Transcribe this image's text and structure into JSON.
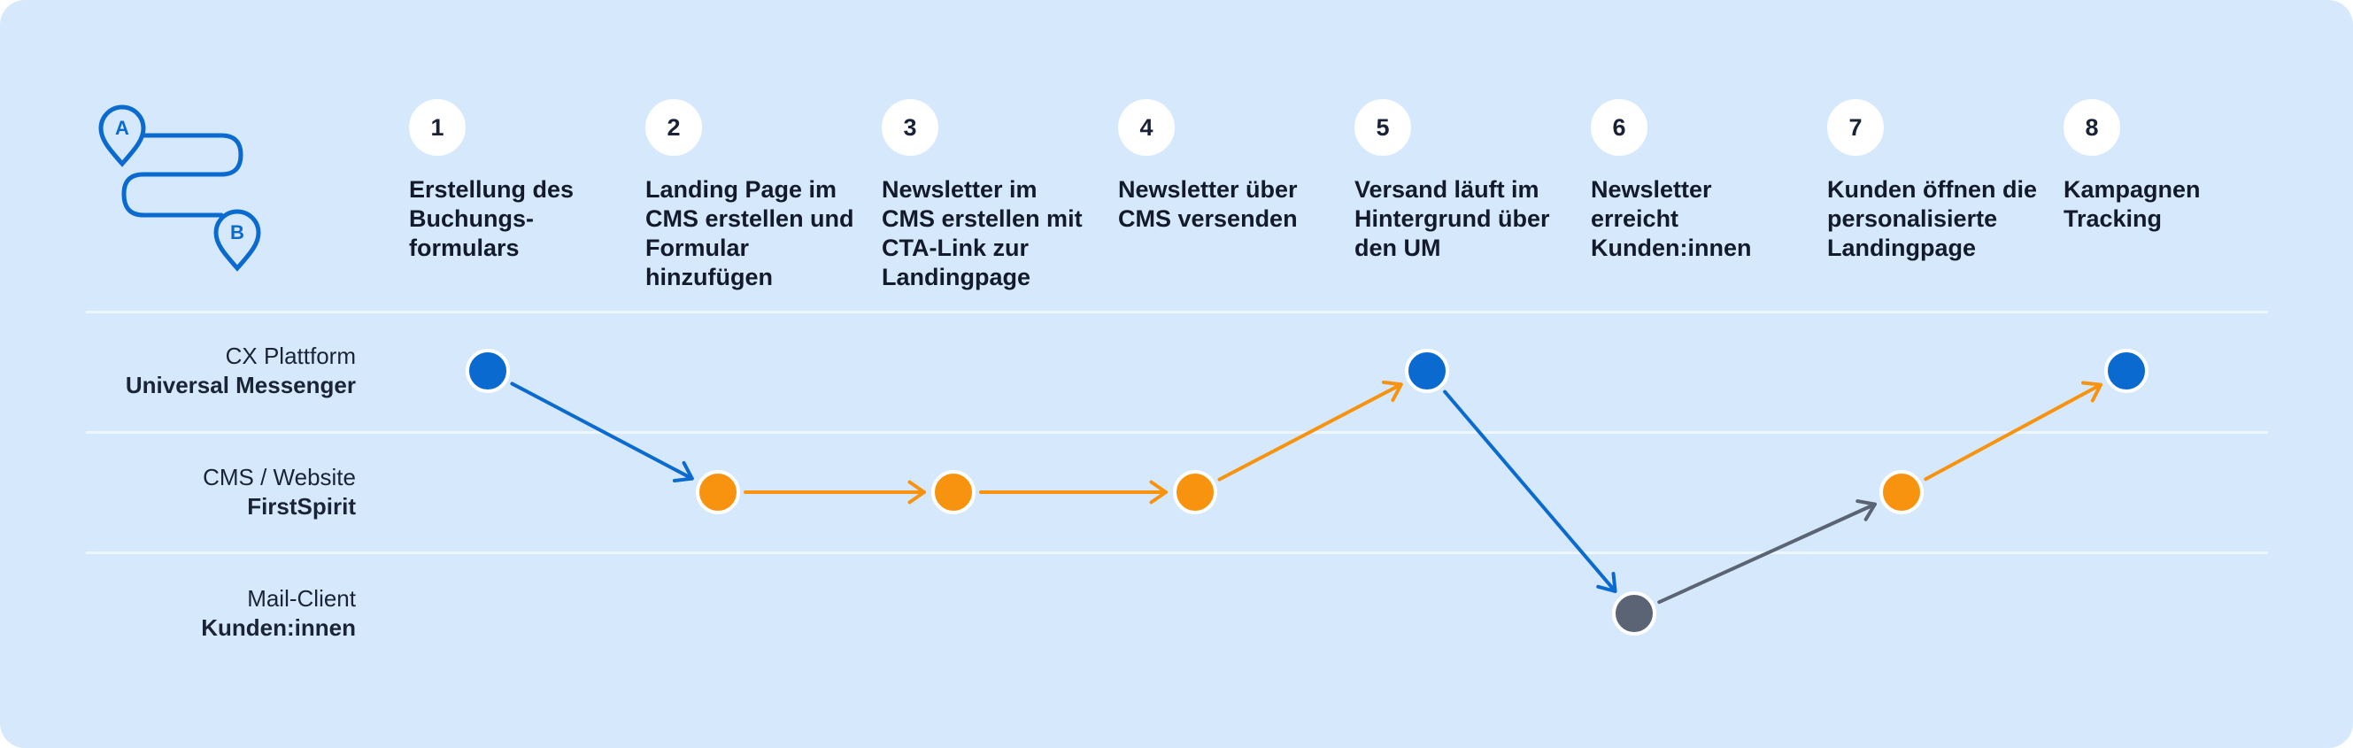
{
  "logo": {
    "icon": "route-a-to-b-icon",
    "pin_a": "A",
    "pin_b": "B",
    "color": "#0a6ad0"
  },
  "steps": [
    {
      "num": "1",
      "label": "Erstellung des\nBuchungs-\nformulars"
    },
    {
      "num": "2",
      "label": "Landing Page im\nCMS erstellen und\nFormular\nhinzufügen"
    },
    {
      "num": "3",
      "label": "Newsletter im\nCMS erstellen mit\nCTA-Link zur\nLandingpage"
    },
    {
      "num": "4",
      "label": "Newsletter über\nCMS versenden"
    },
    {
      "num": "5",
      "label": "Versand läuft im\nHintergrund über\nden UM"
    },
    {
      "num": "6",
      "label": "Newsletter\nerreicht\nKunden:innen"
    },
    {
      "num": "7",
      "label": "Kunden öffnen die\npersonalisierte\nLandingpage"
    },
    {
      "num": "8",
      "label": "Kampagnen\nTracking"
    }
  ],
  "lanes": [
    {
      "top": "CX Plattform",
      "sub": "Universal Messenger"
    },
    {
      "top": "CMS / Website",
      "sub": "FirstSpirit"
    },
    {
      "top": "Mail-Client",
      "sub": "Kunden:innen"
    }
  ],
  "colors": {
    "lane_cx": "#0a6ad0",
    "lane_cms": "#f7930f",
    "lane_mail": "#5b6474"
  },
  "flow": {
    "nodes": [
      {
        "step": 1,
        "lane": 0
      },
      {
        "step": 2,
        "lane": 1
      },
      {
        "step": 3,
        "lane": 1
      },
      {
        "step": 4,
        "lane": 1
      },
      {
        "step": 5,
        "lane": 0
      },
      {
        "step": 6,
        "lane": 2
      },
      {
        "step": 7,
        "lane": 1
      },
      {
        "step": 8,
        "lane": 0
      }
    ],
    "edges": [
      {
        "from": 0,
        "to": 1,
        "color": "#0a6ad0"
      },
      {
        "from": 1,
        "to": 2,
        "color": "#f7930f"
      },
      {
        "from": 2,
        "to": 3,
        "color": "#f7930f"
      },
      {
        "from": 3,
        "to": 4,
        "color": "#f7930f"
      },
      {
        "from": 4,
        "to": 5,
        "color": "#0a6ad0"
      },
      {
        "from": 5,
        "to": 6,
        "color": "#5b6474"
      },
      {
        "from": 6,
        "to": 7,
        "color": "#f7930f"
      }
    ]
  }
}
